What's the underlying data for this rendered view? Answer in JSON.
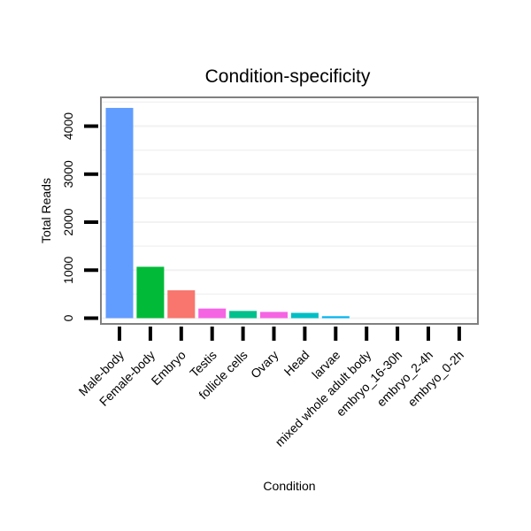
{
  "chart_data": {
    "type": "bar",
    "title": "Condition-specificity",
    "xlabel": "Condition",
    "ylabel": "Total Reads",
    "categories": [
      "Male-body",
      "Female-body",
      "Embryo",
      "Testis",
      "follicle cells",
      "Ovary",
      "Head",
      "larvae",
      "mixed whole adult body",
      "embryo_16-30h",
      "embryo_2-4h",
      "embryo_0-2h"
    ],
    "values": [
      4380,
      1070,
      580,
      200,
      150,
      130,
      110,
      40,
      0,
      0,
      0,
      0
    ],
    "colors": [
      "#619CFF",
      "#00BA38",
      "#F8766D",
      "#F564E3",
      "#00C08B",
      "#F564E3",
      "#00BFC4",
      "#00B4EF",
      "#F8766D",
      "#619CFF",
      "#00BA38",
      "#F8766D"
    ],
    "yticks": [
      0,
      1000,
      2000,
      3000,
      4000
    ],
    "ylim": [
      -120,
      4600
    ],
    "grid": true,
    "legend": "none"
  }
}
